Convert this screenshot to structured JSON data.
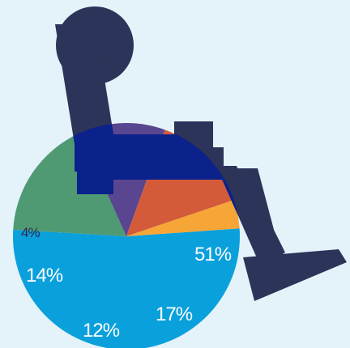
{
  "chart_data": {
    "type": "pie",
    "title": "",
    "slices": [
      {
        "label": "51%",
        "value": 51,
        "color": "#0aa0dc"
      },
      {
        "label": "17%",
        "value": 17,
        "color": "#4f9a73"
      },
      {
        "label": "12%",
        "value": 12,
        "color": "#5a4690"
      },
      {
        "label": "14%",
        "value": 14,
        "color": "#d45b3a"
      },
      {
        "label": "4%",
        "value": 4,
        "color": "#f5a637"
      }
    ],
    "start_angle_deg": -4,
    "direction": "clockwise"
  },
  "overlay": {
    "icon": "wheelchair-icon",
    "color": "#2c3459",
    "overlap_color": "#0b218c"
  }
}
